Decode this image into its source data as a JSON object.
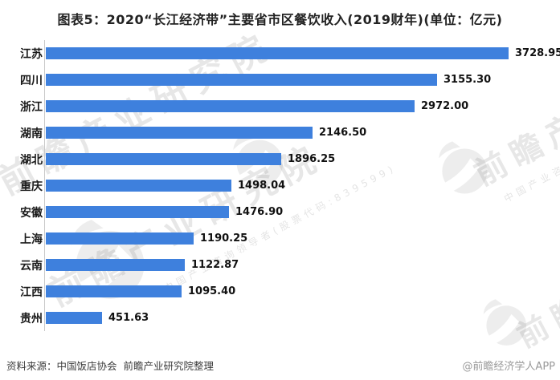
{
  "chart_data": {
    "type": "bar",
    "orientation": "horizontal",
    "title": "图表5：2020“长江经济带”主要省市区餐饮收入(2019财年)(单位：亿元)",
    "unit": "亿元",
    "categories": [
      "江苏",
      "四川",
      "浙江",
      "湖南",
      "湖北",
      "重庆",
      "安徽",
      "上海",
      "云南",
      "江西",
      "贵州"
    ],
    "values": [
      3728.95,
      3155.3,
      2972.0,
      2146.5,
      1896.25,
      1498.04,
      1476.9,
      1190.25,
      1122.87,
      1095.4,
      451.63
    ],
    "value_labels": [
      "3728.95",
      "3155.30",
      "2972.00",
      "2146.50",
      "1896.25",
      "1498.04",
      "1476.90",
      "1190.25",
      "1122.87",
      "1095.40",
      "451.63"
    ],
    "xlabel": "",
    "ylabel": "",
    "xlim": [
      0,
      3728.95
    ],
    "grid": false,
    "legend": null,
    "bar_color": "#3e80dd",
    "axis_line_color": "#c9c9c9"
  },
  "footer": {
    "source": "资料来源：中国饭店协会  前瞻产业研究院整理",
    "credit": "@前瞻经济学人APP"
  },
  "watermark": {
    "brand_text": "前瞻产业研究院",
    "sub_text": "中国产业咨询领导者(股票代码:839599)"
  }
}
